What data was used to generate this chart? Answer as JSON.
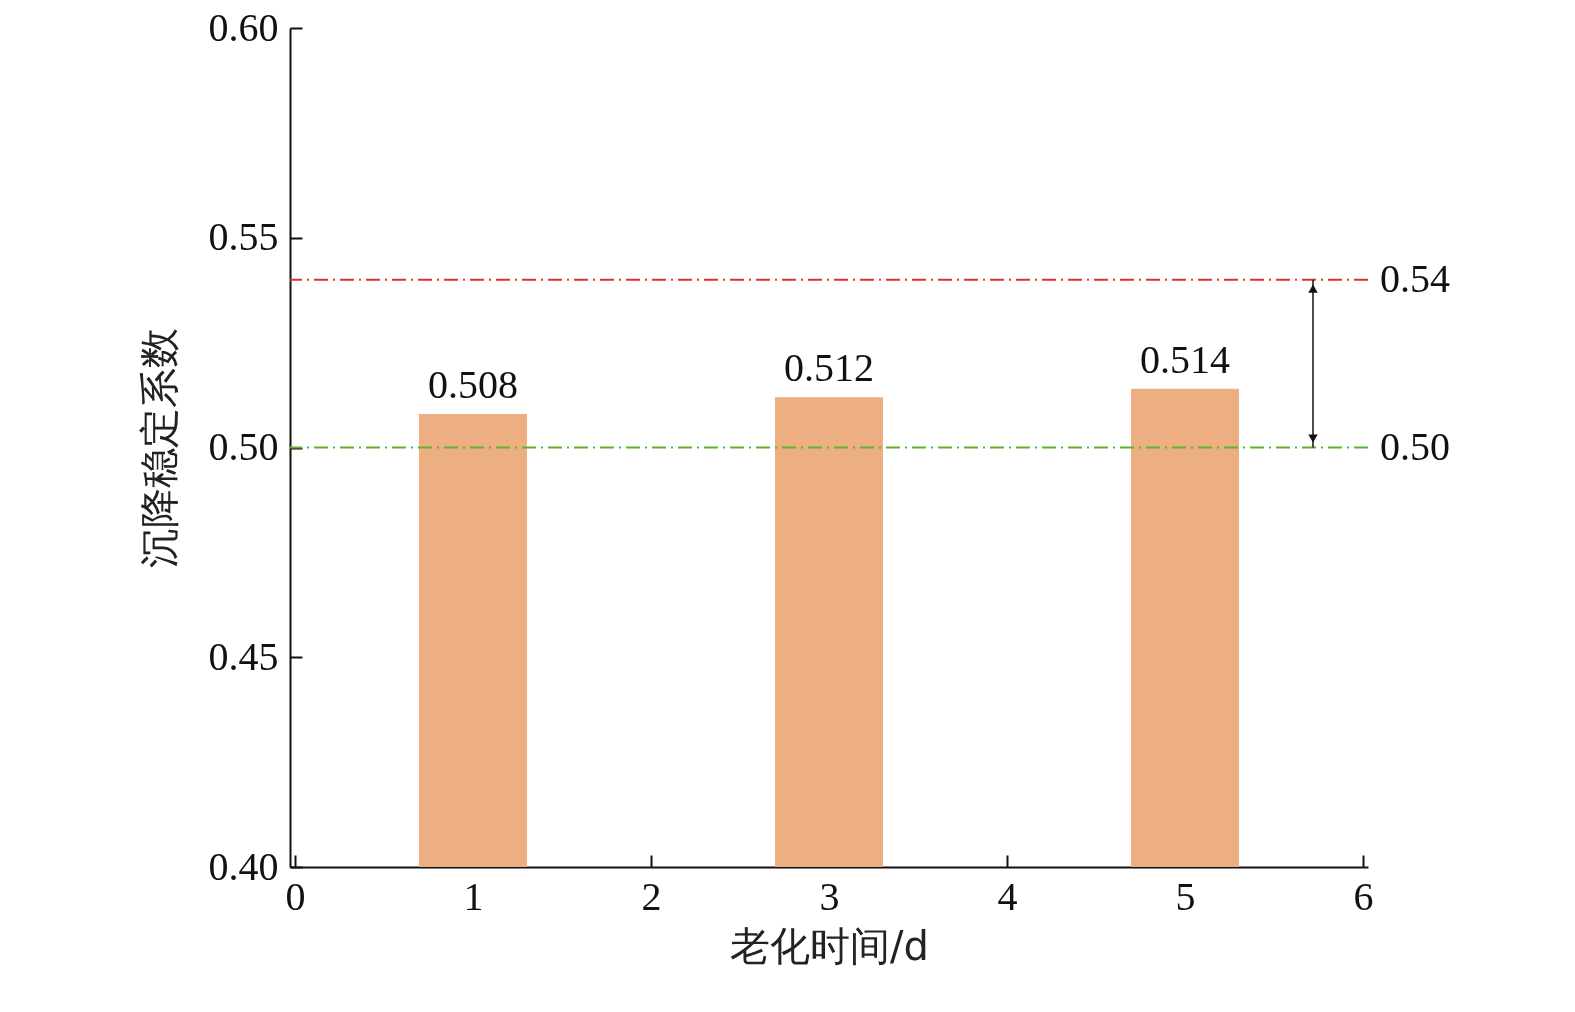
{
  "chart_data": {
    "type": "bar",
    "xlabel": "老化时间/d",
    "ylabel": "沉降稳定系数",
    "x": [
      1,
      3,
      5
    ],
    "values": [
      0.508,
      0.512,
      0.514
    ],
    "color": "#edae82",
    "data_labels": true,
    "xlim": [
      0,
      6
    ],
    "xticks": [
      0,
      1,
      2,
      3,
      4,
      5,
      6
    ],
    "ylim": [
      0.4,
      0.6
    ],
    "yticks": [
      {
        "value": 0.4,
        "label": "0.40"
      },
      {
        "value": 0.45,
        "label": "0.45"
      },
      {
        "value": 0.5,
        "label": "0.50"
      },
      {
        "value": 0.55,
        "label": "0.55"
      },
      {
        "value": 0.6,
        "label": "0.60"
      }
    ],
    "ref_lines": [
      {
        "axis": "y",
        "value": 0.54,
        "label": "0.54",
        "color": "#d9342b",
        "line_style": "dashdot"
      },
      {
        "axis": "y",
        "value": 0.5,
        "label": "0.50",
        "color": "#5ab52c",
        "line_style": "dashdot"
      }
    ],
    "grid": false
  }
}
